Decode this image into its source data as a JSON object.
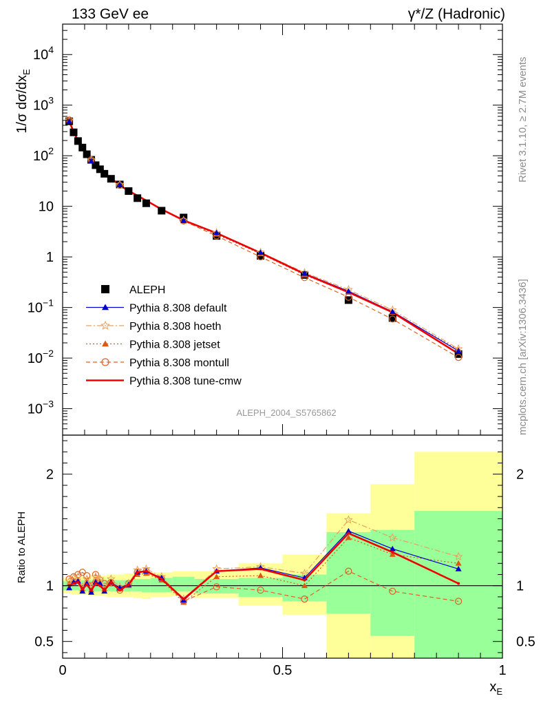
{
  "header": {
    "left": "133 GeV ee",
    "right": "γ*/Z (Hadronic)"
  },
  "side_labels": {
    "rivet": "Rivet 3.1.10, ≥ 2.7M events",
    "site": "mcplots.cern.ch [arXiv:1306.3436]"
  },
  "watermark": "ALEPH_2004_S5765862",
  "chart_data": [
    {
      "type": "line",
      "ylabel": "1/σ dσ/dx_E",
      "yscale": "log",
      "ylim": [
        0.0003,
        40000
      ],
      "xlim": [
        0,
        1
      ],
      "y_ticks": [
        {
          "v": 0.001,
          "base": "10",
          "exp": "−3"
        },
        {
          "v": 0.01,
          "base": "10",
          "exp": "−2"
        },
        {
          "v": 0.1,
          "base": "10",
          "exp": "−1"
        },
        {
          "v": 1,
          "base": "1",
          "exp": ""
        },
        {
          "v": 10,
          "base": "10",
          "exp": ""
        },
        {
          "v": 100,
          "base": "10",
          "exp": "2"
        },
        {
          "v": 1000,
          "base": "10",
          "exp": "3"
        },
        {
          "v": 10000,
          "base": "10",
          "exp": "4"
        }
      ],
      "x": [
        0.015,
        0.025,
        0.035,
        0.045,
        0.055,
        0.065,
        0.075,
        0.085,
        0.095,
        0.11,
        0.13,
        0.15,
        0.17,
        0.19,
        0.225,
        0.275,
        0.35,
        0.45,
        0.55,
        0.65,
        0.75,
        0.9
      ],
      "data": {
        "name": "ALEPH",
        "values": [
          480,
          290,
          195,
          145,
          107,
          83,
          65,
          54,
          44,
          35,
          27,
          20,
          14.5,
          11.5,
          8.2,
          6.0,
          2.6,
          1.05,
          0.44,
          0.14,
          0.062,
          0.012
        ]
      },
      "series": [
        {
          "name": "Pythia 8.308 default",
          "color": "#0000cc",
          "style": "solid",
          "marker": "triangle",
          "values": [
            475,
            300,
            203,
            137,
            109,
            78,
            67,
            55,
            42,
            36,
            26.5,
            20.2,
            16.2,
            13.0,
            8.8,
            5.2,
            3.0,
            1.22,
            0.47,
            0.21,
            0.083,
            0.0138
          ]
        },
        {
          "name": "Pythia 8.308 hoeth",
          "color": "#e8a060",
          "style": "dashdot",
          "marker": "star",
          "values": [
            500,
            310,
            210,
            143,
            113,
            82,
            70,
            57,
            44,
            37,
            26.8,
            20.4,
            16.5,
            13.2,
            8.9,
            5.3,
            3.0,
            1.23,
            0.49,
            0.225,
            0.089,
            0.0152
          ]
        },
        {
          "name": "Pythia 8.308 jetset",
          "color": "#e05510",
          "style": "dotted",
          "marker": "triangle",
          "values": [
            490,
            305,
            205,
            140,
            111,
            80,
            68,
            56,
            43,
            36.5,
            26.3,
            20.0,
            16.0,
            12.8,
            8.6,
            5.1,
            2.8,
            1.15,
            0.44,
            0.2,
            0.08,
            0.0145
          ]
        },
        {
          "name": "Pythia 8.308 montull",
          "color": "#e06020",
          "style": "dashed",
          "marker": "circle",
          "values": [
            510,
            315,
            215,
            163,
            117,
            83,
            72,
            57,
            45,
            36,
            26,
            20.5,
            16.2,
            13.0,
            8.7,
            5.15,
            2.6,
            1.0,
            0.39,
            0.16,
            0.059,
            0.0103
          ]
        },
        {
          "name": "Pythia 8.308 tune-cmw",
          "color": "#ee0000",
          "style": "solid-thick",
          "marker": "none",
          "values": [
            480,
            295,
            200,
            140,
            108,
            80,
            66,
            54,
            42,
            36,
            26,
            20.3,
            16.3,
            13.0,
            8.7,
            5.3,
            2.95,
            1.2,
            0.46,
            0.2,
            0.08,
            0.0122
          ]
        }
      ]
    },
    {
      "type": "line",
      "ylabel": "Ratio to ALEPH",
      "xlabel": "x_E",
      "ylim": [
        0.35,
        2.35
      ],
      "y_ticks": [
        0.5,
        1,
        2
      ],
      "x_ticks": [
        "0",
        "0.5",
        "1"
      ],
      "x_tick_values": [
        0,
        0.5,
        1
      ],
      "bands": [
        {
          "x0": 0.0,
          "x1": 0.02,
          "g": [
            0.96,
            1.04
          ],
          "y": [
            0.93,
            1.07
          ]
        },
        {
          "x0": 0.02,
          "x1": 0.04,
          "g": [
            0.96,
            1.04
          ],
          "y": [
            0.92,
            1.08
          ]
        },
        {
          "x0": 0.04,
          "x1": 0.06,
          "g": [
            0.95,
            1.05
          ],
          "y": [
            0.92,
            1.08
          ]
        },
        {
          "x0": 0.06,
          "x1": 0.08,
          "g": [
            0.95,
            1.05
          ],
          "y": [
            0.91,
            1.09
          ]
        },
        {
          "x0": 0.08,
          "x1": 0.1,
          "g": [
            0.95,
            1.05
          ],
          "y": [
            0.91,
            1.09
          ]
        },
        {
          "x0": 0.1,
          "x1": 0.12,
          "g": [
            0.95,
            1.05
          ],
          "y": [
            0.9,
            1.1
          ]
        },
        {
          "x0": 0.12,
          "x1": 0.14,
          "g": [
            0.95,
            1.05
          ],
          "y": [
            0.9,
            1.1
          ]
        },
        {
          "x0": 0.14,
          "x1": 0.16,
          "g": [
            0.95,
            1.05
          ],
          "y": [
            0.9,
            1.11
          ]
        },
        {
          "x0": 0.16,
          "x1": 0.18,
          "g": [
            0.95,
            1.06
          ],
          "y": [
            0.89,
            1.12
          ]
        },
        {
          "x0": 0.18,
          "x1": 0.2,
          "g": [
            0.94,
            1.06
          ],
          "y": [
            0.88,
            1.12
          ]
        },
        {
          "x0": 0.2,
          "x1": 0.25,
          "g": [
            0.94,
            1.07
          ],
          "y": [
            0.9,
            1.12
          ]
        },
        {
          "x0": 0.25,
          "x1": 0.3,
          "g": [
            0.95,
            1.08
          ],
          "y": [
            0.91,
            1.13
          ]
        },
        {
          "x0": 0.3,
          "x1": 0.4,
          "g": [
            0.93,
            1.06
          ],
          "y": [
            0.89,
            1.13
          ]
        },
        {
          "x0": 0.4,
          "x1": 0.5,
          "g": [
            0.9,
            1.07
          ],
          "y": [
            0.82,
            1.2
          ]
        },
        {
          "x0": 0.5,
          "x1": 0.6,
          "g": [
            0.86,
            1.1
          ],
          "y": [
            0.74,
            1.28
          ]
        },
        {
          "x0": 0.6,
          "x1": 0.7,
          "g": [
            0.75,
            1.48
          ],
          "y": [
            0.35,
            1.65
          ]
        },
        {
          "x0": 0.7,
          "x1": 0.8,
          "g": [
            0.55,
            1.5
          ],
          "y": [
            0.35,
            1.91
          ]
        },
        {
          "x0": 0.8,
          "x1": 1.0,
          "g": [
            0.35,
            1.67
          ],
          "y": [
            0.35,
            2.2
          ]
        }
      ],
      "x": [
        0.015,
        0.025,
        0.035,
        0.045,
        0.055,
        0.065,
        0.075,
        0.085,
        0.095,
        0.11,
        0.13,
        0.15,
        0.17,
        0.19,
        0.225,
        0.275,
        0.35,
        0.45,
        0.55,
        0.65,
        0.75,
        0.9
      ],
      "series": [
        {
          "name": "Pythia 8.308 default",
          "color": "#0000cc",
          "style": "solid",
          "marker": "triangle",
          "values": [
            0.98,
            1.03,
            1.04,
            0.95,
            1.02,
            0.94,
            1.03,
            1.02,
            0.95,
            1.03,
            0.98,
            1.01,
            1.12,
            1.13,
            1.07,
            0.87,
            1.13,
            1.16,
            1.07,
            1.49,
            1.33,
            1.15
          ]
        },
        {
          "name": "Pythia 8.308 hoeth",
          "color": "#e8a060",
          "style": "dashdot",
          "marker": "star",
          "values": [
            1.04,
            1.07,
            1.08,
            0.99,
            1.06,
            0.99,
            1.08,
            1.06,
            0.99,
            1.06,
            0.99,
            1.02,
            1.14,
            1.15,
            1.08,
            0.88,
            1.15,
            1.17,
            1.11,
            1.59,
            1.43,
            1.26
          ]
        },
        {
          "name": "Pythia 8.308 jetset",
          "color": "#e05510",
          "style": "dotted",
          "marker": "triangle",
          "values": [
            1.02,
            1.05,
            1.05,
            0.97,
            1.04,
            0.96,
            1.05,
            1.04,
            0.97,
            1.04,
            0.97,
            1.0,
            1.1,
            1.11,
            1.05,
            0.85,
            1.08,
            1.09,
            1.0,
            1.43,
            1.28,
            1.2
          ]
        },
        {
          "name": "Pythia 8.308 montull",
          "color": "#e06020",
          "style": "dashed",
          "marker": "circle",
          "values": [
            1.06,
            1.08,
            1.1,
            1.12,
            1.09,
            1.0,
            1.1,
            1.05,
            1.02,
            1.03,
            0.96,
            1.02,
            1.12,
            1.13,
            1.06,
            0.86,
            0.99,
            0.96,
            0.88,
            1.13,
            0.95,
            0.86
          ]
        },
        {
          "name": "Pythia 8.308 tune-cmw",
          "color": "#ee0000",
          "style": "solid-thick",
          "marker": "dot",
          "values": [
            1.0,
            1.02,
            1.03,
            0.97,
            1.01,
            0.96,
            1.02,
            1.0,
            0.96,
            1.03,
            0.96,
            1.01,
            1.12,
            1.13,
            1.06,
            0.88,
            1.13,
            1.15,
            1.05,
            1.47,
            1.3,
            1.02
          ]
        }
      ]
    }
  ]
}
